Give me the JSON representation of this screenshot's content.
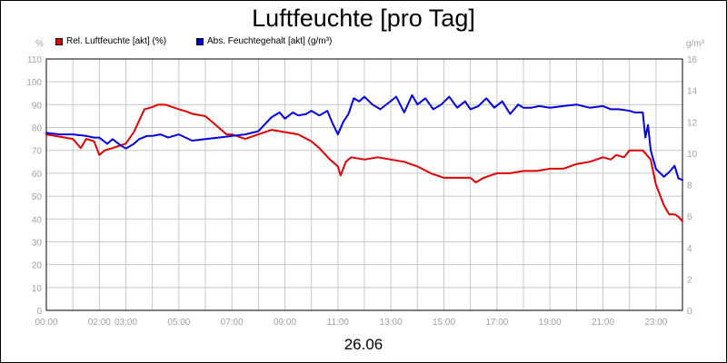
{
  "title": "Luftfeuchte [pro Tag]",
  "date_label": "26.06",
  "units": {
    "left": "%",
    "right": "g/m³"
  },
  "chart_data": {
    "type": "line",
    "title": "Luftfeuchte [pro Tag]",
    "xlabel": "26.06",
    "x_range_hours": [
      0,
      24
    ],
    "x_ticks": [
      "00:00",
      "02:00",
      "03:00",
      "05:00",
      "07:00",
      "09:00",
      "11:00",
      "13:00",
      "15:00",
      "17:00",
      "19:00",
      "21:00",
      "23:00"
    ],
    "y_left": {
      "unit": "%",
      "range": [
        0,
        110
      ],
      "ticks": [
        0,
        10,
        20,
        30,
        40,
        50,
        60,
        70,
        80,
        90,
        100,
        110
      ]
    },
    "y_right": {
      "unit": "g/m³",
      "range": [
        0,
        16
      ],
      "ticks": [
        0,
        2,
        4,
        6,
        8,
        10,
        12,
        14,
        16
      ]
    },
    "grid": true,
    "legend_position": "top-left",
    "series": [
      {
        "name": "Rel. Luftfeuchte [akt] (%)",
        "axis": "left",
        "color": "#e00000",
        "x": [
          0,
          0.5,
          1.0,
          1.3,
          1.5,
          1.8,
          2.0,
          2.2,
          2.5,
          3.0,
          3.3,
          3.5,
          3.7,
          4.0,
          4.2,
          4.5,
          5.0,
          5.3,
          5.5,
          6.0,
          6.5,
          6.8,
          7.0,
          7.5,
          8.0,
          8.5,
          9.0,
          9.5,
          10.0,
          10.3,
          10.7,
          11.0,
          11.1,
          11.3,
          11.5,
          12.0,
          12.5,
          13.0,
          13.5,
          14.0,
          14.5,
          15.0,
          15.5,
          16.0,
          16.2,
          16.5,
          17.0,
          17.5,
          18.0,
          18.5,
          19.0,
          19.5,
          20.0,
          20.5,
          21.0,
          21.3,
          21.5,
          21.8,
          22.0,
          22.2,
          22.5,
          22.8,
          23.0,
          23.3,
          23.5,
          23.7,
          23.85,
          24.0
        ],
        "y": [
          77,
          76,
          75,
          71,
          75,
          74,
          68,
          70,
          71,
          73,
          78,
          83,
          88,
          89,
          90,
          90,
          88,
          87,
          86,
          85,
          80,
          77,
          77,
          75,
          77,
          79,
          78,
          77,
          74,
          71,
          66,
          63,
          59,
          65,
          67,
          66,
          67,
          66,
          65,
          63,
          60,
          58,
          58,
          58,
          56,
          58,
          60,
          60,
          61,
          61,
          62,
          62,
          64,
          65,
          67,
          66,
          68,
          67,
          70,
          70,
          70,
          66,
          55,
          46,
          42,
          42,
          41,
          39
        ]
      },
      {
        "name": "Abs. Feuchtegehalt [akt] (g/m³)",
        "axis": "right",
        "color": "#0000e0",
        "x": [
          0,
          0.5,
          1.0,
          1.5,
          1.8,
          2.0,
          2.3,
          2.5,
          2.8,
          3.0,
          3.3,
          3.5,
          3.8,
          4.0,
          4.3,
          4.6,
          5.0,
          5.5,
          6.0,
          6.5,
          7.0,
          7.5,
          8.0,
          8.5,
          8.8,
          9.0,
          9.3,
          9.5,
          9.8,
          10.0,
          10.3,
          10.6,
          10.8,
          11.0,
          11.2,
          11.4,
          11.6,
          11.8,
          12.0,
          12.3,
          12.6,
          12.9,
          13.2,
          13.5,
          13.8,
          14.0,
          14.3,
          14.6,
          14.9,
          15.2,
          15.5,
          15.8,
          16.0,
          16.3,
          16.6,
          16.9,
          17.2,
          17.5,
          17.8,
          18.0,
          18.3,
          18.6,
          19.0,
          19.5,
          20.0,
          20.5,
          21.0,
          21.3,
          21.6,
          22.0,
          22.2,
          22.5,
          22.6,
          22.7,
          22.8,
          23.0,
          23.3,
          23.5,
          23.7,
          23.85,
          24.0
        ],
        "y": [
          11.3,
          11.2,
          11.2,
          11.1,
          11.0,
          11.0,
          10.6,
          10.9,
          10.5,
          10.3,
          10.6,
          10.9,
          11.1,
          11.1,
          11.2,
          11.0,
          11.2,
          10.8,
          10.9,
          11.0,
          11.1,
          11.2,
          11.4,
          12.3,
          12.6,
          12.2,
          12.6,
          12.4,
          12.5,
          12.7,
          12.4,
          12.7,
          11.9,
          11.2,
          12.0,
          12.5,
          13.5,
          13.3,
          13.6,
          13.1,
          12.8,
          13.2,
          13.6,
          12.6,
          13.7,
          13.1,
          13.5,
          12.8,
          13.1,
          13.6,
          12.9,
          13.3,
          12.8,
          13.0,
          13.5,
          12.9,
          13.3,
          12.5,
          13.1,
          12.9,
          12.9,
          13.0,
          12.9,
          13.0,
          13.1,
          12.9,
          13.0,
          12.8,
          12.8,
          12.7,
          12.6,
          12.6,
          11.0,
          11.8,
          10.2,
          9.0,
          8.5,
          8.8,
          9.2,
          8.4,
          8.3
        ]
      }
    ]
  }
}
